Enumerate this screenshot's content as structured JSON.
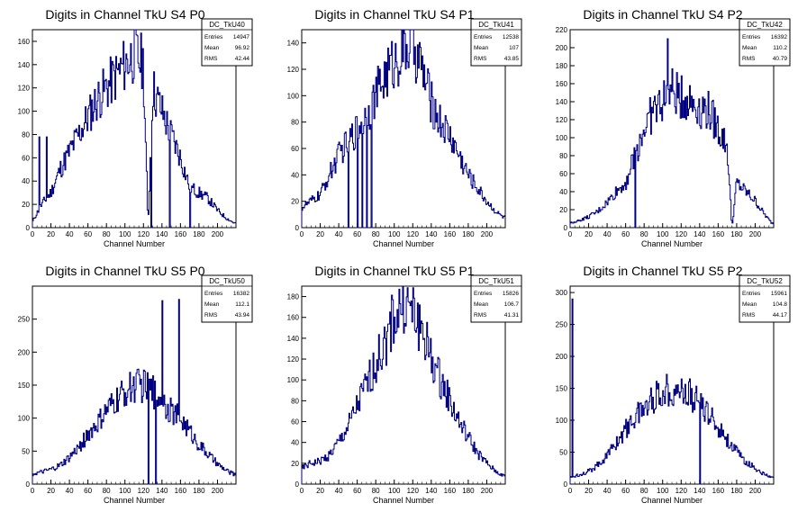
{
  "chart_data": [
    {
      "type": "histogram",
      "title": "Digits in Channel TkU S4 P0",
      "xlabel": "Channel Number",
      "xlim": [
        0,
        220
      ],
      "ylim": [
        0,
        170
      ],
      "xticks": [
        0,
        20,
        40,
        60,
        80,
        100,
        120,
        140,
        160,
        180,
        200
      ],
      "yticks": [
        0,
        20,
        40,
        60,
        80,
        100,
        120,
        140,
        160
      ],
      "stats": {
        "name": "DC_TkU40",
        "entries": "14947",
        "mean": "96.92",
        "rms": "42.44"
      },
      "series_x": [
        0,
        10,
        20,
        30,
        40,
        50,
        60,
        70,
        80,
        90,
        100,
        110,
        120,
        125,
        130,
        140,
        150,
        160,
        170,
        180,
        190,
        200,
        210,
        218
      ],
      "series_y": [
        5,
        20,
        30,
        50,
        65,
        80,
        95,
        110,
        120,
        130,
        140,
        150,
        140,
        0,
        120,
        100,
        80,
        60,
        35,
        30,
        25,
        15,
        8,
        4
      ],
      "spikes": [
        {
          "x": 7,
          "y": 78
        },
        {
          "x": 15,
          "y": 78
        },
        {
          "x": 128,
          "y": 0
        },
        {
          "x": 148,
          "y": 0
        },
        {
          "x": 170,
          "y": 0
        }
      ]
    },
    {
      "type": "histogram",
      "title": "Digits in Channel TkU S4 P1",
      "xlabel": "Channel Number",
      "xlim": [
        0,
        220
      ],
      "ylim": [
        0,
        150
      ],
      "xticks": [
        0,
        20,
        40,
        60,
        80,
        100,
        120,
        140,
        160,
        180,
        200
      ],
      "yticks": [
        0,
        20,
        40,
        60,
        80,
        100,
        120,
        140
      ],
      "stats": {
        "name": "DC_TkU41",
        "entries": "12538",
        "mean": "107",
        "rms": "43.85"
      },
      "series_x": [
        0,
        10,
        20,
        30,
        40,
        50,
        60,
        70,
        80,
        90,
        100,
        110,
        120,
        130,
        140,
        150,
        160,
        170,
        180,
        190,
        200,
        210,
        218
      ],
      "series_y": [
        15,
        20,
        25,
        40,
        55,
        65,
        75,
        85,
        100,
        115,
        125,
        135,
        140,
        120,
        95,
        80,
        70,
        55,
        40,
        30,
        20,
        12,
        8
      ],
      "spikes": [
        {
          "x": 50,
          "y": 0
        },
        {
          "x": 60,
          "y": 0
        },
        {
          "x": 65,
          "y": 0
        },
        {
          "x": 70,
          "y": 0
        },
        {
          "x": 75,
          "y": 0
        }
      ]
    },
    {
      "type": "histogram",
      "title": "Digits in Channel TkU S4 P2",
      "xlabel": "Channel Number",
      "xlim": [
        0,
        220
      ],
      "ylim": [
        0,
        220
      ],
      "xticks": [
        0,
        20,
        40,
        60,
        80,
        100,
        120,
        140,
        160,
        180,
        200
      ],
      "yticks": [
        0,
        20,
        40,
        60,
        80,
        100,
        120,
        140,
        160,
        180,
        200,
        220
      ],
      "stats": {
        "name": "DC_TkU42",
        "entries": "16392",
        "mean": "110.2",
        "rms": "40.79"
      },
      "series_x": [
        0,
        10,
        20,
        30,
        40,
        50,
        60,
        70,
        80,
        90,
        100,
        110,
        120,
        130,
        140,
        150,
        160,
        170,
        175,
        180,
        190,
        200,
        210,
        218
      ],
      "series_y": [
        5,
        8,
        12,
        18,
        28,
        40,
        50,
        80,
        110,
        130,
        140,
        150,
        145,
        140,
        135,
        130,
        110,
        90,
        0,
        50,
        40,
        30,
        15,
        5
      ],
      "spikes": [
        {
          "x": 70,
          "y": 0
        },
        {
          "x": 105,
          "y": 210
        }
      ]
    },
    {
      "type": "histogram",
      "title": "Digits in Channel TkU S5 P0",
      "xlabel": "Channel Number",
      "xlim": [
        0,
        220
      ],
      "ylim": [
        0,
        300
      ],
      "xticks": [
        0,
        20,
        40,
        60,
        80,
        100,
        120,
        140,
        160,
        180,
        200
      ],
      "yticks": [
        0,
        50,
        100,
        150,
        200,
        250
      ],
      "stats": {
        "name": "DC_TkU50",
        "entries": "16382",
        "mean": "112.1",
        "rms": "43.94"
      },
      "series_x": [
        0,
        10,
        20,
        30,
        40,
        50,
        60,
        70,
        80,
        90,
        100,
        110,
        120,
        130,
        140,
        150,
        160,
        170,
        180,
        190,
        200,
        210,
        218
      ],
      "series_y": [
        15,
        18,
        22,
        28,
        40,
        55,
        75,
        90,
        110,
        125,
        140,
        150,
        150,
        140,
        130,
        110,
        100,
        80,
        60,
        45,
        30,
        20,
        15
      ],
      "spikes": [
        {
          "x": 125,
          "y": 0
        },
        {
          "x": 140,
          "y": 278
        },
        {
          "x": 158,
          "y": 280
        },
        {
          "x": 133,
          "y": 0
        }
      ]
    },
    {
      "type": "histogram",
      "title": "Digits in Channel TkU S5 P1",
      "xlabel": "Channel Number",
      "xlim": [
        0,
        220
      ],
      "ylim": [
        0,
        190
      ],
      "xticks": [
        0,
        20,
        40,
        60,
        80,
        100,
        120,
        140,
        160,
        180,
        200
      ],
      "yticks": [
        0,
        20,
        40,
        60,
        80,
        100,
        120,
        140,
        160,
        180
      ],
      "stats": {
        "name": "DC_TkU51",
        "entries": "15826",
        "mean": "106.7",
        "rms": "41.31"
      },
      "series_x": [
        0,
        10,
        20,
        30,
        40,
        50,
        60,
        70,
        80,
        90,
        100,
        110,
        120,
        130,
        140,
        150,
        160,
        170,
        180,
        190,
        200,
        210,
        218
      ],
      "series_y": [
        15,
        20,
        22,
        28,
        40,
        55,
        75,
        95,
        115,
        135,
        160,
        175,
        165,
        150,
        120,
        100,
        80,
        60,
        45,
        30,
        20,
        12,
        8
      ],
      "spikes": []
    },
    {
      "type": "histogram",
      "title": "Digits in Channel TkU S5 P2",
      "xlabel": "Channel Number",
      "xlim": [
        0,
        220
      ],
      "ylim": [
        0,
        310
      ],
      "xticks": [
        0,
        20,
        40,
        60,
        80,
        100,
        120,
        140,
        160,
        180,
        200
      ],
      "yticks": [
        0,
        50,
        100,
        150,
        200,
        250,
        300
      ],
      "stats": {
        "name": "DC_TkU52",
        "entries": "15961",
        "mean": "104.8",
        "rms": "44.17"
      },
      "series_x": [
        0,
        10,
        20,
        30,
        40,
        50,
        60,
        70,
        80,
        90,
        100,
        110,
        120,
        130,
        140,
        150,
        160,
        170,
        180,
        190,
        200,
        210,
        218
      ],
      "series_y": [
        10,
        15,
        20,
        30,
        45,
        65,
        85,
        105,
        120,
        135,
        145,
        150,
        145,
        140,
        125,
        110,
        90,
        70,
        50,
        35,
        25,
        15,
        10
      ],
      "spikes": [
        {
          "x": 2,
          "y": 290
        },
        {
          "x": 140,
          "y": 0
        }
      ]
    }
  ]
}
